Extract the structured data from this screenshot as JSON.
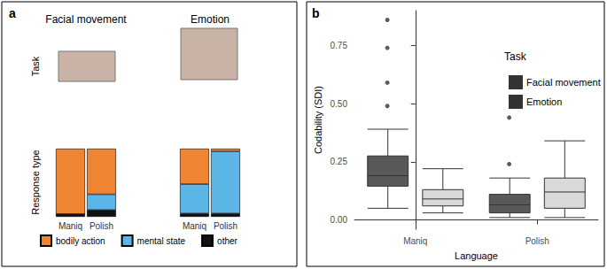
{
  "chart_data": [
    {
      "type": "bar",
      "panel_label": "a",
      "stacked": true,
      "tick_labels": "x",
      "legend": "bottom",
      "row_labels": [
        "Task",
        "Response type"
      ],
      "ylim": [
        0,
        1
      ],
      "facets": [
        {
          "title": "Facial movement",
          "categories": [
            "Maniq",
            "Polish"
          ],
          "series": [
            {
              "name": "bodily action",
              "color": "#ef8532",
              "values": [
                0.96,
                0.67
              ]
            },
            {
              "name": "mental state",
              "color": "#5bb5e6",
              "values": [
                0,
                0.23
              ]
            },
            {
              "name": "other",
              "color": "#111111",
              "values": [
                0.04,
                0.1
              ]
            }
          ]
        },
        {
          "title": "Emotion",
          "categories": [
            "Maniq",
            "Polish"
          ],
          "series": [
            {
              "name": "bodily action",
              "color": "#ef8532",
              "values": [
                0.52,
                0.04
              ]
            },
            {
              "name": "mental state",
              "color": "#5bb5e6",
              "values": [
                0.43,
                0.91
              ]
            },
            {
              "name": "other",
              "color": "#111111",
              "values": [
                0.05,
                0.05
              ]
            }
          ]
        }
      ]
    },
    {
      "type": "boxplot",
      "panel_label": "b",
      "grid": false,
      "legend": "top right",
      "legend_title": "Task",
      "x_label": "Language",
      "y_label": "Codability (SDI)",
      "categories": [
        "Maniq",
        "Polish"
      ],
      "ylim": [
        -0.04,
        0.9
      ],
      "yticks": [
        {
          "value": 0,
          "label": "0.00"
        },
        {
          "value": 0.25,
          "label": "0.25"
        },
        {
          "value": 0.5,
          "label": "0.50"
        },
        {
          "value": 0.75,
          "label": "0.75"
        }
      ],
      "series": [
        {
          "name": "Facial movement",
          "color": "#595959",
          "values": [
            [
              0.05,
              0.145,
              0.19,
              0.275,
              0.39
            ],
            [
              0.01,
              0.03,
              0.065,
              0.11,
              0.18
            ]
          ],
          "outliers": [
            [
              0.49,
              0.59,
              0.74,
              0.86
            ],
            [
              0.24,
              0.44
            ]
          ]
        },
        {
          "name": "Emotion",
          "color": "#d9d9d9",
          "values": [
            [
              0.03,
              0.06,
              0.09,
              0.13,
              0.22
            ],
            [
              0.01,
              0.05,
              0.12,
              0.18,
              0.34
            ]
          ],
          "outliers": [
            [],
            []
          ]
        }
      ]
    }
  ]
}
